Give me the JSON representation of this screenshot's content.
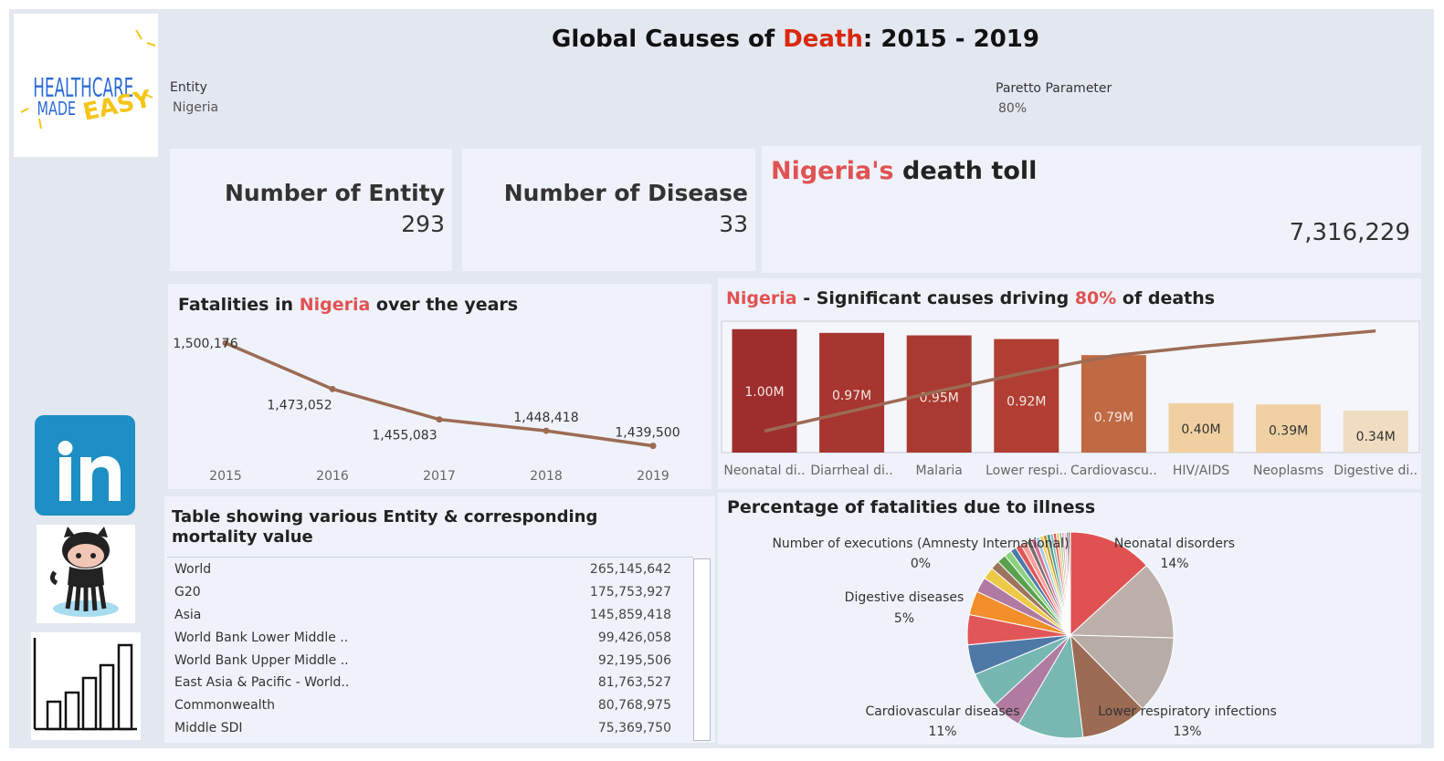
{
  "header": {
    "title_part1": "Global Causes of ",
    "title_highlight": "Death",
    "title_part2": ": 2015 - 2019"
  },
  "logo": {
    "line1": "HEALTHCARE",
    "line2": "MADE",
    "line3": "EASY"
  },
  "filters": {
    "entity_label": "Entity",
    "entity_value": "Nigeria",
    "pareto_label": "Paretto Parameter",
    "pareto_value": "80%"
  },
  "kpis": {
    "entity_label": "Number of Entity",
    "entity_value": "293",
    "disease_label": "Number of Disease",
    "disease_value": "33",
    "toll_entity": "Nigeria's",
    "toll_label": " death toll",
    "toll_value": "7,316,229"
  },
  "line_panel": {
    "title_a": "Fatalities in ",
    "title_entity": "Nigeria",
    "title_b": " over the years"
  },
  "pareto_panel": {
    "title_entity": "Nigeria",
    "title_a": " -  Significant causes driving ",
    "title_pct": "80%",
    "title_b": " of deaths"
  },
  "table_panel": {
    "title_line1": "Table showing various Entity & corresponding",
    "title_line2": "mortality value",
    "rows": [
      {
        "entity": "World",
        "value": "265,145,642"
      },
      {
        "entity": "G20",
        "value": "175,753,927"
      },
      {
        "entity": "Asia",
        "value": "145,859,418"
      },
      {
        "entity": "World Bank Lower Middle ..",
        "value": "99,426,058"
      },
      {
        "entity": "World Bank Upper Middle ..",
        "value": "92,195,506"
      },
      {
        "entity": "East Asia & Pacific - World..",
        "value": "81,763,527"
      },
      {
        "entity": "Commonwealth",
        "value": "80,768,975"
      },
      {
        "entity": "Middle SDI",
        "value": "75,369,750"
      }
    ]
  },
  "pie_panel": {
    "title": "Percentage of fatalities due to illness"
  },
  "colors": {
    "accent_red": "#e05252",
    "line": "#9c6b54",
    "background": "#e3e7f0",
    "panel": "#eff2fa"
  },
  "icons": [
    "linkedin-icon",
    "github-icon",
    "bar-chart-icon"
  ],
  "chart_data": [
    {
      "type": "line",
      "x": [
        "2015",
        "2016",
        "2017",
        "2018",
        "2019"
      ],
      "values": [
        1500176,
        1473052,
        1455083,
        1448418,
        1439500
      ],
      "labels": [
        "1,500,176",
        "1,473,052",
        "1,455,083",
        "1,448,418",
        "1,439,500"
      ],
      "ylim": [
        1435000,
        1505000
      ]
    },
    {
      "type": "bar",
      "categories": [
        "Neonatal di..",
        "Diarrheal di..",
        "Malaria",
        "Lower respi..",
        "Cardiovascu..",
        "HIV/AIDS",
        "Neoplasms",
        "Digestive di.."
      ],
      "values": [
        1.0,
        0.97,
        0.95,
        0.92,
        0.79,
        0.4,
        0.39,
        0.34
      ],
      "labels": [
        "1.00M",
        "0.97M",
        "0.95M",
        "0.92M",
        "0.79M",
        "0.40M",
        "0.39M",
        "0.34M"
      ],
      "colors": [
        "#9e2d2d",
        "#a73530",
        "#aa3a31",
        "#b03e33",
        "#c06a44",
        "#f0d0a0",
        "#efd1a4",
        "#f0dcc0"
      ],
      "cumulative_pct": [
        0.14,
        0.27,
        0.4,
        0.52,
        0.63,
        0.69,
        0.74,
        0.79
      ],
      "ylim": [
        0,
        1.05
      ]
    },
    {
      "type": "pie",
      "slices": [
        {
          "name": "Neonatal disorders",
          "pct": 14,
          "label": "14%",
          "color": "#e05252"
        },
        {
          "name": "",
          "pct": 13,
          "label": "",
          "color": "#bdb0aa"
        },
        {
          "name": "Lower respiratory infections",
          "pct": 13,
          "label": "13%",
          "color": "#b8aca6"
        },
        {
          "name": "",
          "pct": 11,
          "label": "",
          "color": "#9c6b54"
        },
        {
          "name": "Cardiovascular diseases",
          "pct": 11,
          "label": "11%",
          "color": "#78b7b2"
        },
        {
          "name": "",
          "pct": 5,
          "label": "",
          "color": "#b07aa1"
        },
        {
          "name": "",
          "pct": 6,
          "label": "",
          "color": "#76b7b2"
        },
        {
          "name": "",
          "pct": 5,
          "label": "",
          "color": "#4e79a7"
        },
        {
          "name": "Digestive diseases",
          "pct": 5,
          "label": "5%",
          "color": "#e15759"
        },
        {
          "name": "",
          "pct": 4,
          "label": "",
          "color": "#f28e2b"
        },
        {
          "name": "",
          "pct": 2.5,
          "label": "",
          "color": "#b07aa1"
        },
        {
          "name": "",
          "pct": 2,
          "label": "",
          "color": "#edc948"
        },
        {
          "name": "",
          "pct": 1.5,
          "label": "",
          "color": "#9c755f"
        },
        {
          "name": "",
          "pct": 1.5,
          "label": "",
          "color": "#59a14f"
        },
        {
          "name": "",
          "pct": 1.2,
          "label": "",
          "color": "#8cd17d"
        },
        {
          "name": "",
          "pct": 1,
          "label": "",
          "color": "#4e79a7"
        },
        {
          "name": "",
          "pct": 1,
          "label": "",
          "color": "#e15759"
        },
        {
          "name": "",
          "pct": 1,
          "label": "",
          "color": "#ff9d9a"
        },
        {
          "name": "",
          "pct": 0.8,
          "label": "",
          "color": "#79706e"
        },
        {
          "name": "",
          "pct": 0.8,
          "label": "",
          "color": "#d37295"
        },
        {
          "name": "",
          "pct": 0.7,
          "label": "",
          "color": "#a0cbe8"
        },
        {
          "name": "",
          "pct": 0.6,
          "label": "",
          "color": "#f1ce63"
        },
        {
          "name": "",
          "pct": 0.6,
          "label": "",
          "color": "#b6992d"
        },
        {
          "name": "",
          "pct": 0.6,
          "label": "",
          "color": "#499894"
        },
        {
          "name": "",
          "pct": 0.5,
          "label": "",
          "color": "#86bcb6"
        },
        {
          "name": "",
          "pct": 0.5,
          "label": "",
          "color": "#e15759"
        },
        {
          "name": "",
          "pct": 0.5,
          "label": "",
          "color": "#ffbe7d"
        },
        {
          "name": "",
          "pct": 0.4,
          "label": "",
          "color": "#8cd17d"
        },
        {
          "name": "",
          "pct": 0.4,
          "label": "",
          "color": "#d4a6c8"
        },
        {
          "name": "",
          "pct": 0.4,
          "label": "",
          "color": "#fabfd2"
        },
        {
          "name": "",
          "pct": 0.3,
          "label": "",
          "color": "#555555"
        },
        {
          "name": "",
          "pct": 0.3,
          "label": "",
          "color": "#444444"
        },
        {
          "name": "Number of executions (Amnesty International)",
          "pct": 0.05,
          "label": "0%",
          "color": "#333333"
        }
      ]
    }
  ]
}
